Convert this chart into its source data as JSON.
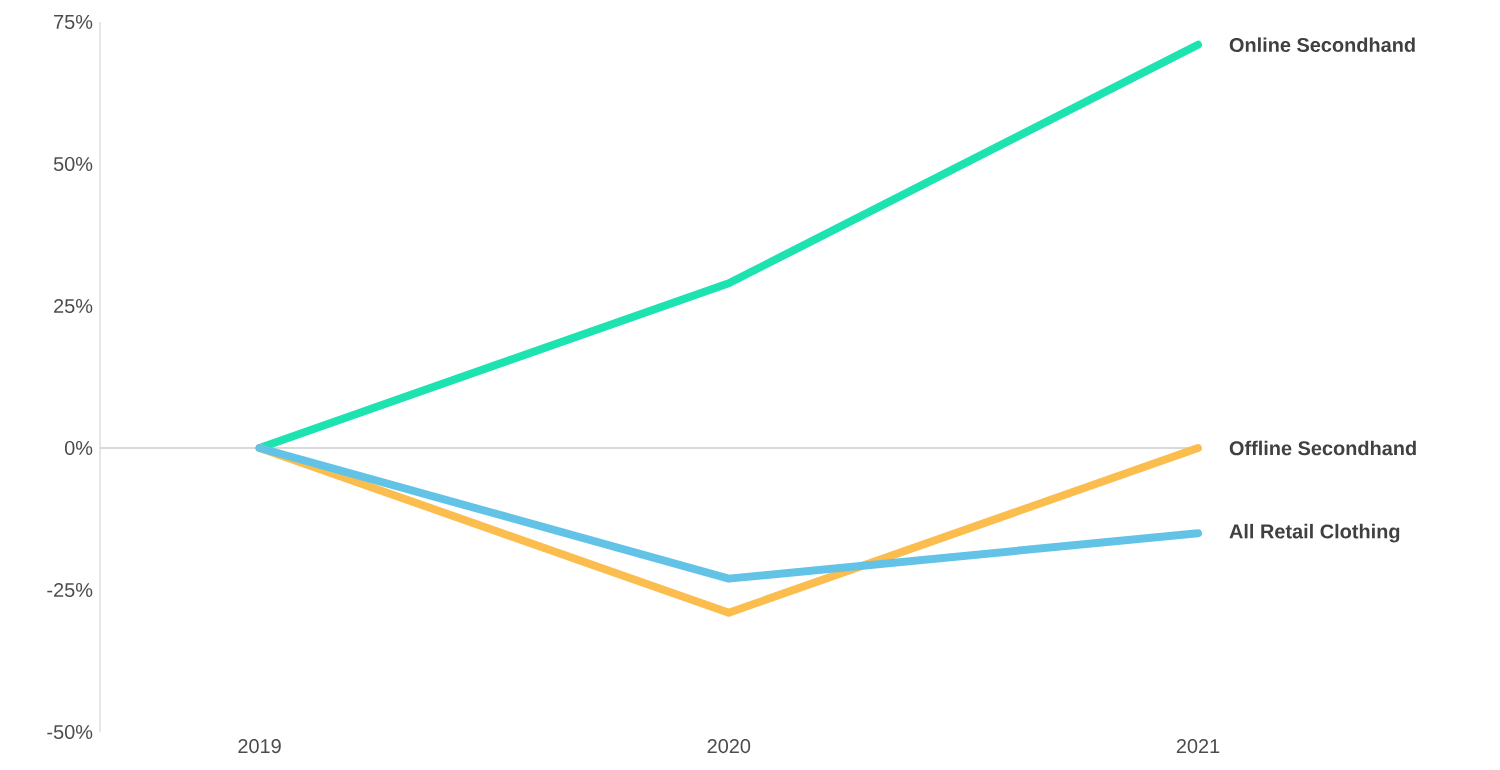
{
  "chart_data": {
    "type": "line",
    "categories": [
      "2019",
      "2020",
      "2021"
    ],
    "series": [
      {
        "name": "Online Secondhand",
        "color": "#1de3b0",
        "values": [
          0,
          29,
          71
        ]
      },
      {
        "name": "Offline Secondhand",
        "color": "#fbbd4e",
        "values": [
          0,
          -29,
          0
        ]
      },
      {
        "name": "All Retail Clothing",
        "color": "#62c3e6",
        "values": [
          0,
          -23,
          -15
        ]
      }
    ],
    "ylim": [
      -50,
      75
    ],
    "yticks": [
      {
        "value": -50,
        "label": "-50%"
      },
      {
        "value": -25,
        "label": "-25%"
      },
      {
        "value": 0,
        "label": "0%"
      },
      {
        "value": 25,
        "label": "25%"
      },
      {
        "value": 50,
        "label": "50%"
      },
      {
        "value": 75,
        "label": "75%"
      }
    ],
    "ref_lines": [
      {
        "axis": "y",
        "value": 0,
        "color": "#d9d9d9"
      }
    ],
    "grid": false,
    "legend": false
  }
}
